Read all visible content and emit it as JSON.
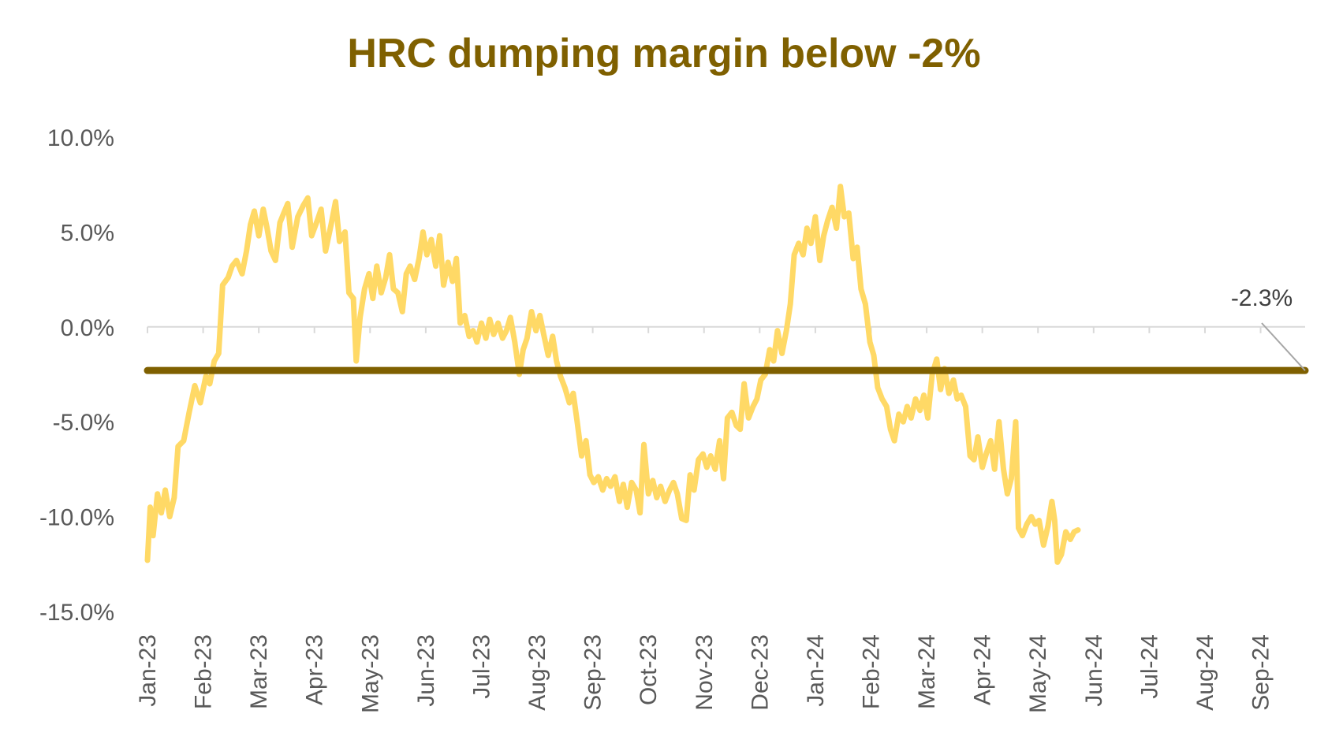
{
  "colors": {
    "title": "#7F6000",
    "series_line": "#FFD966",
    "threshold_line": "#7F6000",
    "zero_line": "#D9D9D9",
    "tick_text": "#595959",
    "annotation_leader": "#A6A6A6"
  },
  "chart_data": {
    "type": "line",
    "title": "HRC dumping margin below -2%",
    "xlabel": "",
    "ylabel": "",
    "ylim": [
      -15,
      10
    ],
    "y_ticks": [
      "10.0%",
      "5.0%",
      "0.0%",
      "-5.0%",
      "-10.0%",
      "-15.0%"
    ],
    "y_tick_values": [
      10,
      5,
      0,
      -5,
      -10,
      -15
    ],
    "x_tick_labels": [
      "Jan-23",
      "Feb-23",
      "Mar-23",
      "Apr-23",
      "May-23",
      "Jun-23",
      "Jul-23",
      "Aug-23",
      "Sep-23",
      "Oct-23",
      "Nov-23",
      "Dec-23",
      "Jan-24",
      "Feb-24",
      "Mar-24",
      "Apr-24",
      "May-24",
      "Jun-24",
      "Jul-24",
      "Aug-24",
      "Sep-24"
    ],
    "x_range_months": [
      0,
      20.8
    ],
    "grid": false,
    "legend": "none",
    "series": [
      {
        "values_by_month": [
          [
            0.0,
            -12.3
          ],
          [
            0.05,
            -9.5
          ],
          [
            0.1,
            -11.0
          ],
          [
            0.18,
            -8.8
          ],
          [
            0.25,
            -9.8
          ],
          [
            0.32,
            -8.6
          ],
          [
            0.4,
            -10.0
          ],
          [
            0.48,
            -9.0
          ],
          [
            0.55,
            -6.3
          ],
          [
            0.65,
            -6.0
          ],
          [
            0.75,
            -4.5
          ],
          [
            0.85,
            -3.1
          ],
          [
            0.95,
            -4.0
          ],
          [
            1.05,
            -2.6
          ],
          [
            1.12,
            -3.0
          ],
          [
            1.2,
            -1.8
          ],
          [
            1.28,
            -1.4
          ],
          [
            1.35,
            2.2
          ],
          [
            1.45,
            2.6
          ],
          [
            1.52,
            3.2
          ],
          [
            1.6,
            3.5
          ],
          [
            1.7,
            2.8
          ],
          [
            1.78,
            4.0
          ],
          [
            1.85,
            5.4
          ],
          [
            1.92,
            6.1
          ],
          [
            2.0,
            4.8
          ],
          [
            2.08,
            6.2
          ],
          [
            2.15,
            5.2
          ],
          [
            2.22,
            4.0
          ],
          [
            2.3,
            3.5
          ],
          [
            2.38,
            5.5
          ],
          [
            2.45,
            6.0
          ],
          [
            2.52,
            6.5
          ],
          [
            2.6,
            4.2
          ],
          [
            2.7,
            5.8
          ],
          [
            2.8,
            6.4
          ],
          [
            2.88,
            6.8
          ],
          [
            2.95,
            4.8
          ],
          [
            3.05,
            5.6
          ],
          [
            3.12,
            6.2
          ],
          [
            3.2,
            4.0
          ],
          [
            3.3,
            5.4
          ],
          [
            3.38,
            6.6
          ],
          [
            3.45,
            4.5
          ],
          [
            3.55,
            5.0
          ],
          [
            3.62,
            1.8
          ],
          [
            3.7,
            1.5
          ],
          [
            3.75,
            -1.8
          ],
          [
            3.82,
            0.5
          ],
          [
            3.9,
            2.0
          ],
          [
            3.98,
            2.8
          ],
          [
            4.05,
            1.5
          ],
          [
            4.12,
            3.2
          ],
          [
            4.2,
            1.8
          ],
          [
            4.28,
            2.6
          ],
          [
            4.35,
            3.8
          ],
          [
            4.42,
            2.0
          ],
          [
            4.5,
            1.8
          ],
          [
            4.58,
            0.8
          ],
          [
            4.65,
            2.8
          ],
          [
            4.72,
            3.2
          ],
          [
            4.8,
            2.5
          ],
          [
            4.88,
            3.6
          ],
          [
            4.95,
            5.0
          ],
          [
            5.02,
            3.8
          ],
          [
            5.1,
            4.6
          ],
          [
            5.18,
            3.2
          ],
          [
            5.25,
            4.8
          ],
          [
            5.32,
            2.2
          ],
          [
            5.4,
            3.4
          ],
          [
            5.48,
            2.4
          ],
          [
            5.55,
            3.6
          ],
          [
            5.62,
            0.2
          ],
          [
            5.7,
            0.6
          ],
          [
            5.78,
            -0.5
          ],
          [
            5.85,
            -0.2
          ],
          [
            5.92,
            -0.8
          ],
          [
            6.0,
            0.2
          ],
          [
            6.08,
            -0.6
          ],
          [
            6.15,
            0.4
          ],
          [
            6.22,
            -0.4
          ],
          [
            6.3,
            0.2
          ],
          [
            6.38,
            -0.6
          ],
          [
            6.45,
            -0.2
          ],
          [
            6.52,
            0.5
          ],
          [
            6.6,
            -0.8
          ],
          [
            6.68,
            -2.5
          ],
          [
            6.75,
            -1.2
          ],
          [
            6.82,
            -0.6
          ],
          [
            6.9,
            0.8
          ],
          [
            6.98,
            -0.2
          ],
          [
            7.05,
            0.6
          ],
          [
            7.12,
            -0.4
          ],
          [
            7.2,
            -1.5
          ],
          [
            7.28,
            -0.5
          ],
          [
            7.35,
            -1.8
          ],
          [
            7.42,
            -2.6
          ],
          [
            7.5,
            -3.2
          ],
          [
            7.58,
            -4.0
          ],
          [
            7.65,
            -3.5
          ],
          [
            7.72,
            -5.0
          ],
          [
            7.8,
            -6.8
          ],
          [
            7.88,
            -6.0
          ],
          [
            7.95,
            -7.8
          ],
          [
            8.02,
            -8.2
          ],
          [
            8.1,
            -7.9
          ],
          [
            8.18,
            -8.6
          ],
          [
            8.25,
            -8.0
          ],
          [
            8.32,
            -8.4
          ],
          [
            8.4,
            -7.9
          ],
          [
            8.48,
            -9.2
          ],
          [
            8.55,
            -8.3
          ],
          [
            8.62,
            -9.5
          ],
          [
            8.7,
            -8.2
          ],
          [
            8.78,
            -8.6
          ],
          [
            8.85,
            -9.8
          ],
          [
            8.92,
            -6.2
          ],
          [
            9.0,
            -8.8
          ],
          [
            9.08,
            -8.1
          ],
          [
            9.15,
            -9.0
          ],
          [
            9.22,
            -8.4
          ],
          [
            9.3,
            -9.2
          ],
          [
            9.38,
            -8.6
          ],
          [
            9.45,
            -8.2
          ],
          [
            9.52,
            -8.8
          ],
          [
            9.6,
            -10.1
          ],
          [
            9.68,
            -10.2
          ],
          [
            9.75,
            -7.8
          ],
          [
            9.82,
            -8.6
          ],
          [
            9.9,
            -7.0
          ],
          [
            9.98,
            -6.7
          ],
          [
            10.05,
            -7.4
          ],
          [
            10.12,
            -6.8
          ],
          [
            10.2,
            -7.5
          ],
          [
            10.28,
            -6.0
          ],
          [
            10.35,
            -8.0
          ],
          [
            10.42,
            -4.8
          ],
          [
            10.5,
            -4.5
          ],
          [
            10.58,
            -5.2
          ],
          [
            10.65,
            -5.4
          ],
          [
            10.72,
            -3.0
          ],
          [
            10.8,
            -4.8
          ],
          [
            10.88,
            -4.2
          ],
          [
            10.95,
            -3.8
          ],
          [
            11.02,
            -2.8
          ],
          [
            11.1,
            -2.5
          ],
          [
            11.18,
            -1.2
          ],
          [
            11.25,
            -1.8
          ],
          [
            11.32,
            -0.2
          ],
          [
            11.4,
            -1.4
          ],
          [
            11.48,
            -0.2
          ],
          [
            11.55,
            1.2
          ],
          [
            11.62,
            3.8
          ],
          [
            11.7,
            4.4
          ],
          [
            11.78,
            3.8
          ],
          [
            11.85,
            5.2
          ],
          [
            11.92,
            4.4
          ],
          [
            12.0,
            5.8
          ],
          [
            12.08,
            3.5
          ],
          [
            12.15,
            4.8
          ],
          [
            12.22,
            5.6
          ],
          [
            12.3,
            6.3
          ],
          [
            12.38,
            5.2
          ],
          [
            12.45,
            7.4
          ],
          [
            12.52,
            5.8
          ],
          [
            12.6,
            6.0
          ],
          [
            12.68,
            3.6
          ],
          [
            12.75,
            4.2
          ],
          [
            12.82,
            2.0
          ],
          [
            12.9,
            1.2
          ],
          [
            12.98,
            -0.8
          ],
          [
            13.05,
            -1.5
          ],
          [
            13.12,
            -3.2
          ],
          [
            13.2,
            -3.8
          ],
          [
            13.28,
            -4.2
          ],
          [
            13.35,
            -5.4
          ],
          [
            13.42,
            -6.0
          ],
          [
            13.5,
            -4.6
          ],
          [
            13.58,
            -5.0
          ],
          [
            13.65,
            -4.2
          ],
          [
            13.72,
            -4.8
          ],
          [
            13.8,
            -3.8
          ],
          [
            13.88,
            -4.4
          ],
          [
            13.95,
            -3.6
          ],
          [
            14.02,
            -4.8
          ],
          [
            14.1,
            -2.5
          ],
          [
            14.18,
            -1.7
          ],
          [
            14.25,
            -3.3
          ],
          [
            14.32,
            -2.2
          ],
          [
            14.4,
            -3.5
          ],
          [
            14.48,
            -2.8
          ],
          [
            14.55,
            -3.8
          ],
          [
            14.62,
            -3.6
          ],
          [
            14.7,
            -4.2
          ],
          [
            14.78,
            -6.8
          ],
          [
            14.85,
            -7.0
          ],
          [
            14.92,
            -5.8
          ],
          [
            15.0,
            -7.4
          ],
          [
            15.08,
            -6.6
          ],
          [
            15.15,
            -6.0
          ],
          [
            15.22,
            -7.5
          ],
          [
            15.3,
            -5.0
          ],
          [
            15.38,
            -7.5
          ],
          [
            15.45,
            -8.8
          ],
          [
            15.52,
            -8.0
          ],
          [
            15.6,
            -5.0
          ],
          [
            15.65,
            -10.6
          ],
          [
            15.72,
            -11.0
          ],
          [
            15.8,
            -10.4
          ],
          [
            15.88,
            -10.0
          ],
          [
            15.95,
            -10.4
          ],
          [
            16.02,
            -10.2
          ],
          [
            16.1,
            -11.5
          ],
          [
            16.18,
            -10.5
          ],
          [
            16.25,
            -9.2
          ],
          [
            16.3,
            -10.2
          ],
          [
            16.35,
            -12.4
          ],
          [
            16.42,
            -12.0
          ],
          [
            16.5,
            -10.8
          ],
          [
            16.58,
            -11.2
          ],
          [
            16.65,
            -10.8
          ],
          [
            16.72,
            -10.7
          ]
        ]
      }
    ],
    "threshold": {
      "value": -2.3
    },
    "annotation": {
      "label": "-2.3%"
    }
  }
}
